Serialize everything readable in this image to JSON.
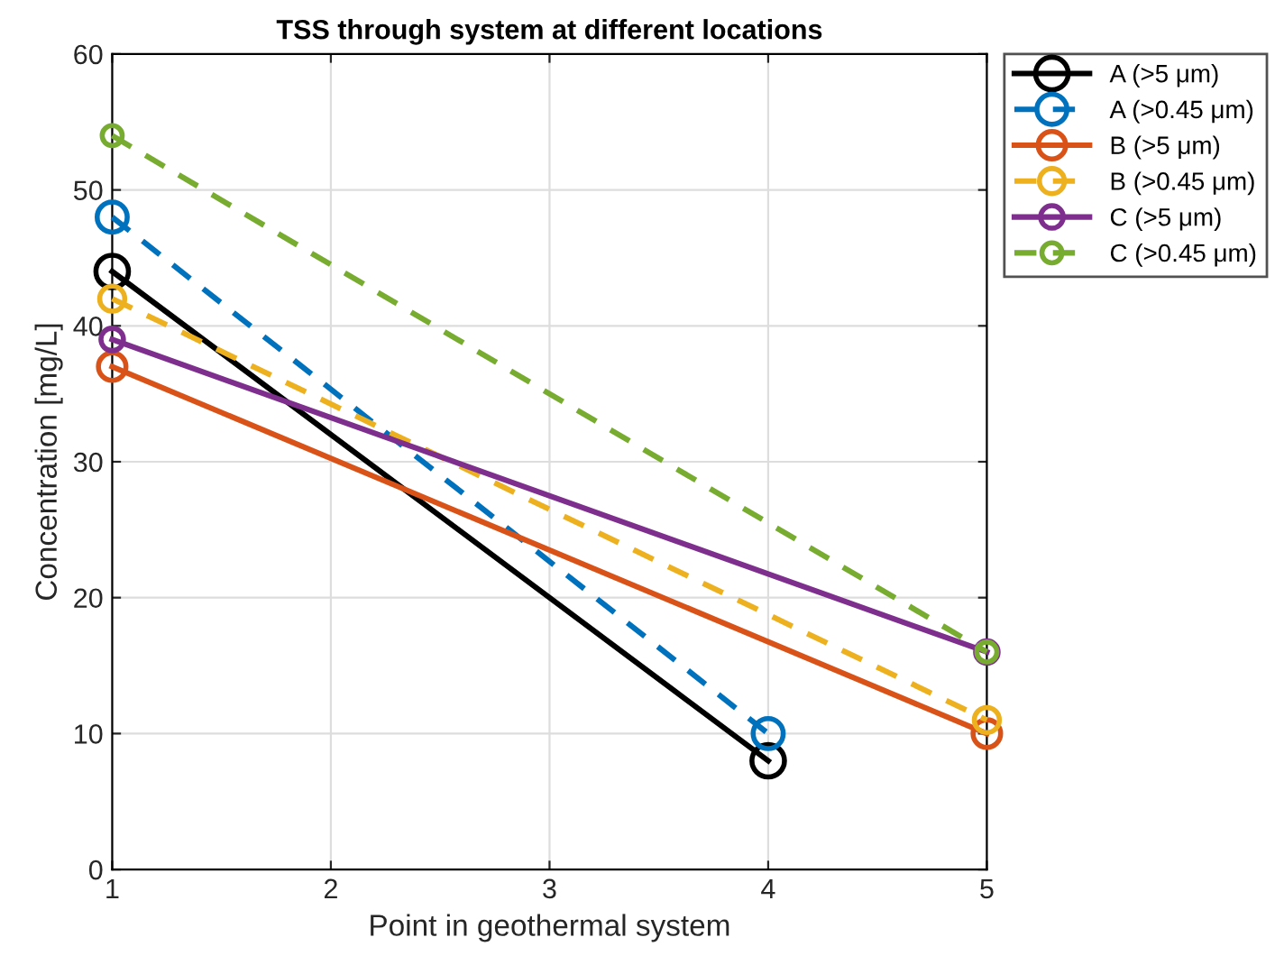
{
  "chart_data": {
    "type": "line",
    "title": "TSS through system at different locations",
    "xlabel": "Point in geothermal system",
    "ylabel": "Concentration [mg/L]",
    "xlim": [
      1,
      5
    ],
    "xticks": [
      1,
      2,
      3,
      4,
      5
    ],
    "ylim": [
      0,
      60
    ],
    "yticks": [
      0,
      10,
      20,
      30,
      40,
      50,
      60
    ],
    "grid": true,
    "legend": "top right",
    "marker": "circle",
    "series": [
      {
        "name": "A (>5 μm)",
        "color": "#000000",
        "line_style": "solid",
        "x": [
          1,
          4
        ],
        "values": [
          44,
          8
        ]
      },
      {
        "name": "A (>0.45 μm)",
        "color": "#0072bd",
        "line_style": "dashed",
        "x": [
          1,
          4
        ],
        "values": [
          48,
          10
        ]
      },
      {
        "name": "B (>5 μm)",
        "color": "#d95319",
        "line_style": "solid",
        "x": [
          1,
          5
        ],
        "values": [
          37,
          10
        ]
      },
      {
        "name": "B (>0.45 μm)",
        "color": "#edb120",
        "line_style": "dashed",
        "x": [
          1,
          5
        ],
        "values": [
          42,
          11
        ]
      },
      {
        "name": "C (>5 μm)",
        "color": "#7e2f8e",
        "line_style": "solid",
        "x": [
          1,
          5
        ],
        "values": [
          39,
          16
        ]
      },
      {
        "name": "C (>0.45 μm)",
        "color": "#77ac30",
        "line_style": "dashed",
        "x": [
          1,
          5
        ],
        "values": [
          54,
          16
        ]
      }
    ]
  }
}
